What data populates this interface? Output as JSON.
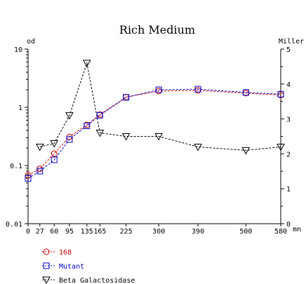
{
  "chart_data": {
    "type": "line",
    "title": "Rich Medium",
    "ylabel_left": "od",
    "ylabel_right": "Miller",
    "xlabel": "mn",
    "x_ticks": [
      0,
      27,
      60,
      95,
      135,
      165,
      225,
      300,
      390,
      500,
      580
    ],
    "y_left_scale": "log",
    "y_left_ticks": [
      "0.01",
      "0.1",
      "1",
      "10"
    ],
    "y_left_range": [
      0.01,
      10
    ],
    "y_right_ticks": [
      "0",
      "1",
      "2",
      "3",
      "4",
      "5"
    ],
    "y_right_range": [
      0,
      5
    ],
    "grid": false,
    "legend_position": "bottom-left",
    "series": [
      {
        "name": "168",
        "axis": "left",
        "marker": "circle",
        "color": "#cc0000",
        "x": [
          0,
          27,
          60,
          95,
          135,
          165,
          225,
          300,
          390,
          500,
          580
        ],
        "y": [
          0.068,
          0.088,
          0.16,
          0.31,
          0.5,
          0.75,
          1.5,
          1.9,
          1.95,
          1.75,
          1.62
        ]
      },
      {
        "name": "Mutant",
        "axis": "left",
        "marker": "square",
        "color": "#0000cc",
        "x": [
          0,
          27,
          60,
          95,
          135,
          165,
          225,
          300,
          390,
          500,
          580
        ],
        "y": [
          0.06,
          0.08,
          0.125,
          0.28,
          0.48,
          0.73,
          1.48,
          2.0,
          2.05,
          1.8,
          1.68
        ]
      },
      {
        "name": "Beta Galactosidase",
        "axis": "right",
        "marker": "triangle-down",
        "color": "#000000",
        "x": [
          27,
          60,
          95,
          135,
          165,
          225,
          300,
          390,
          500,
          580
        ],
        "y": [
          2.2,
          2.3,
          3.1,
          4.6,
          2.6,
          2.5,
          2.5,
          2.2,
          2.1,
          2.2
        ]
      }
    ]
  }
}
